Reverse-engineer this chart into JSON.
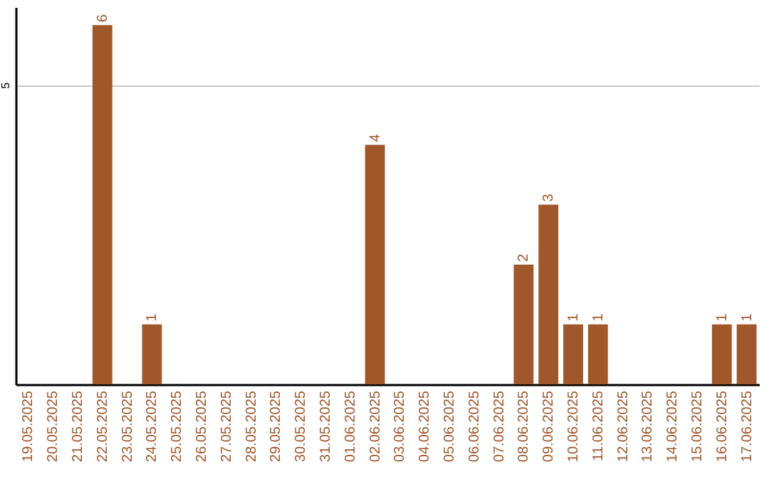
{
  "chart_data": {
    "type": "bar",
    "categories": [
      "19.05.2025",
      "20.05.2025",
      "21.05.2025",
      "22.05.2025",
      "23.05.2025",
      "24.05.2025",
      "25.05.2025",
      "26.05.2025",
      "27.05.2025",
      "28.05.2025",
      "29.05.2025",
      "30.05.2025",
      "31.05.2025",
      "01.06.2025",
      "02.06.2025",
      "03.06.2025",
      "04.06.2025",
      "05.06.2025",
      "06.06.2025",
      "07.06.2025",
      "08.06.2025",
      "09.06.2025",
      "10.06.2025",
      "11.06.2025",
      "12.06.2025",
      "13.06.2025",
      "14.06.2025",
      "15.06.2025",
      "16.06.2025",
      "17.06.2025"
    ],
    "values": [
      0,
      0,
      0,
      6,
      0,
      1,
      0,
      0,
      0,
      0,
      0,
      0,
      0,
      0,
      4,
      0,
      0,
      0,
      0,
      0,
      2,
      3,
      1,
      1,
      0,
      0,
      0,
      0,
      1,
      1
    ],
    "value_labels": [
      null,
      null,
      null,
      "6",
      null,
      "1",
      null,
      null,
      null,
      null,
      null,
      null,
      null,
      null,
      "4",
      null,
      null,
      null,
      null,
      null,
      "2",
      "3",
      "1",
      "1",
      null,
      null,
      null,
      null,
      "1",
      "1"
    ],
    "color": "#a0572a",
    "ylim": [
      0,
      6.3
    ],
    "yticks": [
      5
    ],
    "grid": "y"
  }
}
